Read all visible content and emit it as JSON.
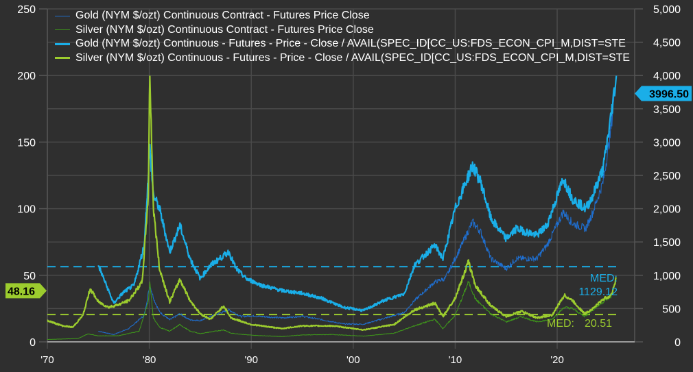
{
  "chart_data": {
    "type": "line",
    "title": "",
    "x_ticks": [
      "'70",
      "'80",
      "'90",
      "'00",
      "'10",
      "'20"
    ],
    "x_tick_years": [
      1970,
      1980,
      1990,
      2000,
      2010,
      2020
    ],
    "xlim": [
      1970,
      2027.6
    ],
    "left_axis": {
      "ylim": [
        0,
        250
      ],
      "ticks": [
        "0",
        "50",
        "100",
        "150",
        "200",
        "250"
      ],
      "tick_values": [
        0,
        50,
        100,
        150,
        200,
        250
      ]
    },
    "right_axis": {
      "ylim": [
        0,
        5000
      ],
      "ticks": [
        "0",
        "500",
        "1,000",
        "1,500",
        "2,000",
        "2,500",
        "3,000",
        "3,500",
        "4,000",
        "4,500",
        "5,000"
      ],
      "tick_values": [
        0,
        500,
        1000,
        1500,
        2000,
        2500,
        3000,
        3500,
        4000,
        4500,
        5000
      ]
    },
    "legend_position": "top-left",
    "series": [
      {
        "name": "Gold (NYM $/ozt) Continuous Contract - Futures Price Close",
        "axis": "right",
        "color": "#1f6fd0",
        "width": 1,
        "points": [
          [
            1975,
            160
          ],
          [
            1976.5,
            110
          ],
          [
            1978,
            200
          ],
          [
            1979.5,
            400
          ],
          [
            1980.05,
            850
          ],
          [
            1980.5,
            620
          ],
          [
            1981,
            450
          ],
          [
            1982,
            330
          ],
          [
            1983,
            420
          ],
          [
            1984,
            330
          ],
          [
            1985,
            320
          ],
          [
            1986,
            380
          ],
          [
            1987.8,
            480
          ],
          [
            1989,
            380
          ],
          [
            1990,
            390
          ],
          [
            1993,
            360
          ],
          [
            1995,
            385
          ],
          [
            1997,
            330
          ],
          [
            1999,
            270
          ],
          [
            2001,
            265
          ],
          [
            2003,
            350
          ],
          [
            2005,
            440
          ],
          [
            2006,
            620
          ],
          [
            2008,
            900
          ],
          [
            2009,
            950
          ],
          [
            2010,
            1250
          ],
          [
            2011.7,
            1800
          ],
          [
            2012.5,
            1650
          ],
          [
            2013.5,
            1250
          ],
          [
            2015,
            1100
          ],
          [
            2016,
            1250
          ],
          [
            2018,
            1250
          ],
          [
            2019,
            1450
          ],
          [
            2020.6,
            1950
          ],
          [
            2021.5,
            1780
          ],
          [
            2022.8,
            1700
          ],
          [
            2023.5,
            1950
          ],
          [
            2024.5,
            2400
          ],
          [
            2025.2,
            3100
          ],
          [
            2025.8,
            3996.5
          ]
        ]
      },
      {
        "name": "Silver (NYM $/ozt) Continuous Contract - Futures Price Close",
        "axis": "left",
        "color": "#3f9a1a",
        "width": 1,
        "points": [
          [
            1970,
            1.8
          ],
          [
            1973,
            2.5
          ],
          [
            1974,
            6
          ],
          [
            1975,
            4.5
          ],
          [
            1977,
            4.6
          ],
          [
            1979,
            8
          ],
          [
            1979.9,
            30
          ],
          [
            1980.05,
            45
          ],
          [
            1980.4,
            18
          ],
          [
            1981,
            11
          ],
          [
            1982,
            8
          ],
          [
            1983,
            13
          ],
          [
            1984,
            8
          ],
          [
            1985,
            6.2
          ],
          [
            1987.3,
            9
          ],
          [
            1988,
            6.5
          ],
          [
            1990,
            5
          ],
          [
            1993,
            4
          ],
          [
            1995,
            5.2
          ],
          [
            1998,
            5.5
          ],
          [
            2001,
            4.3
          ],
          [
            2004,
            6.5
          ],
          [
            2006,
            12
          ],
          [
            2008,
            17
          ],
          [
            2008.8,
            10
          ],
          [
            2010,
            20
          ],
          [
            2011.3,
            45
          ],
          [
            2012,
            32
          ],
          [
            2013.5,
            21
          ],
          [
            2015,
            15
          ],
          [
            2016.5,
            19
          ],
          [
            2018,
            15
          ],
          [
            2019.5,
            17
          ],
          [
            2020.7,
            26
          ],
          [
            2021.5,
            25
          ],
          [
            2022.7,
            19
          ],
          [
            2023.5,
            24
          ],
          [
            2024.5,
            30
          ],
          [
            2025.3,
            34
          ],
          [
            2025.8,
            48.16
          ]
        ]
      },
      {
        "name": "Gold (NYM $/ozt) Continuous - Futures - Price - Close / AVAIL(SPEC_ID[CC_US:FDS_ECON_CPI_M,DIST=STE",
        "axis": "right",
        "color": "#1aaee8",
        "width": 2.2,
        "points": [
          [
            1975,
            1150
          ],
          [
            1976.5,
            580
          ],
          [
            1977.5,
            750
          ],
          [
            1978.5,
            850
          ],
          [
            1979.5,
            1450
          ],
          [
            1980.05,
            2900
          ],
          [
            1980.4,
            2200
          ],
          [
            1981,
            2000
          ],
          [
            1982,
            1350
          ],
          [
            1983,
            1750
          ],
          [
            1984,
            1250
          ],
          [
            1985,
            950
          ],
          [
            1986,
            1150
          ],
          [
            1987.8,
            1350
          ],
          [
            1988.5,
            1100
          ],
          [
            1989.5,
            950
          ],
          [
            1991,
            850
          ],
          [
            1993,
            770
          ],
          [
            1995,
            730
          ],
          [
            1997,
            650
          ],
          [
            1999,
            520
          ],
          [
            2001,
            470
          ],
          [
            2003,
            620
          ],
          [
            2005,
            720
          ],
          [
            2006,
            1150
          ],
          [
            2008,
            1450
          ],
          [
            2008.8,
            1250
          ],
          [
            2010,
            2000
          ],
          [
            2011.7,
            2650
          ],
          [
            2012.5,
            2400
          ],
          [
            2013.5,
            1850
          ],
          [
            2015,
            1550
          ],
          [
            2016,
            1700
          ],
          [
            2018,
            1600
          ],
          [
            2019,
            1750
          ],
          [
            2020.6,
            2450
          ],
          [
            2021.5,
            2150
          ],
          [
            2022.8,
            2000
          ],
          [
            2023.5,
            2200
          ],
          [
            2024.5,
            2600
          ],
          [
            2025.2,
            3300
          ],
          [
            2025.8,
            3996.5
          ]
        ]
      },
      {
        "name": "Silver (NYM $/ozt) Continuous - Futures - Price - Close / AVAIL(SPEC_ID[CC_US:FDS_ECON_CPI_M,DIST=STE",
        "axis": "left",
        "color": "#9ccc2e",
        "width": 2.2,
        "points": [
          [
            1970,
            16
          ],
          [
            1971.5,
            12
          ],
          [
            1972.5,
            11
          ],
          [
            1973.5,
            20
          ],
          [
            1974.2,
            40
          ],
          [
            1975,
            30
          ],
          [
            1976,
            26
          ],
          [
            1977,
            28
          ],
          [
            1978,
            31
          ],
          [
            1979.3,
            45
          ],
          [
            1979.9,
            110
          ],
          [
            1980.05,
            203
          ],
          [
            1980.4,
            100
          ],
          [
            1981,
            55
          ],
          [
            1982,
            30
          ],
          [
            1983,
            47
          ],
          [
            1984,
            31
          ],
          [
            1985,
            21
          ],
          [
            1986,
            17
          ],
          [
            1987.3,
            27
          ],
          [
            1988,
            18
          ],
          [
            1990,
            13
          ],
          [
            1993,
            10
          ],
          [
            1995,
            12
          ],
          [
            1998,
            12
          ],
          [
            2001,
            9
          ],
          [
            2004,
            13
          ],
          [
            2006,
            24
          ],
          [
            2008,
            29
          ],
          [
            2008.8,
            19
          ],
          [
            2010,
            33
          ],
          [
            2011.3,
            60
          ],
          [
            2012,
            42
          ],
          [
            2013.5,
            27
          ],
          [
            2015,
            19
          ],
          [
            2016.5,
            23
          ],
          [
            2018,
            18
          ],
          [
            2019.5,
            20
          ],
          [
            2020.7,
            35
          ],
          [
            2021.5,
            31
          ],
          [
            2022.7,
            21
          ],
          [
            2023.5,
            25
          ],
          [
            2024.5,
            32
          ],
          [
            2025.3,
            35
          ],
          [
            2025.8,
            48.16
          ]
        ]
      }
    ],
    "annotations": {
      "gold_median": {
        "label": "MED:",
        "value": 1129.12,
        "value_text": "1129.12",
        "axis": "right",
        "color": "#1aaee8"
      },
      "silver_median": {
        "label": "MED:",
        "value": 20.51,
        "value_text": "20.51",
        "axis": "left",
        "color": "#9ccc2e"
      },
      "left_last_value": {
        "text": "48.16",
        "value": 48.16,
        "color": "#9ccc2e"
      },
      "right_last_value": {
        "text": "3996.50",
        "value": 3996.5,
        "color": "#1aaee8"
      }
    }
  }
}
